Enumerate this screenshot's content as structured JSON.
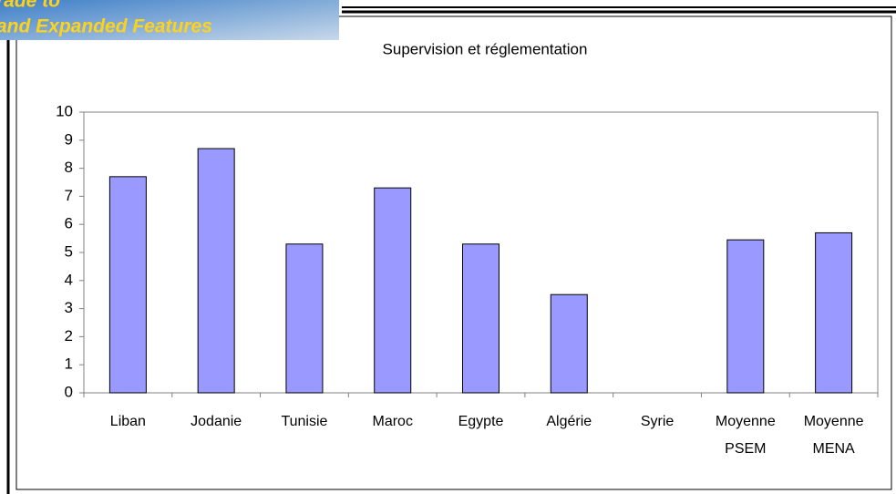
{
  "banner": {
    "line1": "rade to",
    "line2": "and Expanded Features"
  },
  "chart_data": {
    "type": "bar",
    "title": "Supervision et réglementation",
    "categories": [
      "Liban",
      "Jodanie",
      "Tunisie",
      "Maroc",
      "Egypte",
      "Algérie",
      "Syrie",
      "Moyenne\nPSEM",
      "Moyenne\nMENA"
    ],
    "values": [
      7.7,
      8.7,
      5.3,
      7.3,
      5.3,
      3.5,
      null,
      5.45,
      5.7
    ],
    "color": "#9999ff",
    "ylim": [
      0,
      10
    ],
    "yticks": [
      0,
      1,
      2,
      3,
      4,
      5,
      6,
      7,
      8,
      9,
      10
    ],
    "grid": false
  }
}
